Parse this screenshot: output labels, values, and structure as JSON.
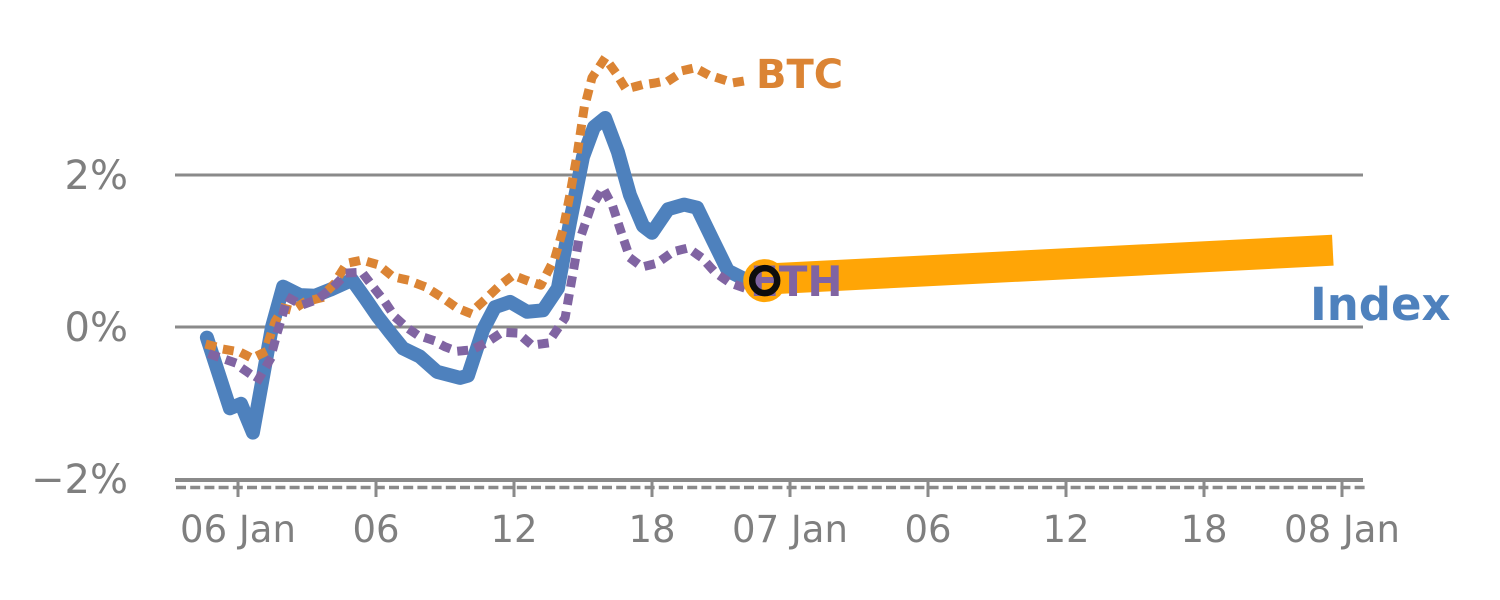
{
  "chart_data": {
    "type": "line",
    "title": "",
    "background": "#FFFFFF",
    "axis_color": "#8A8A8A",
    "label_color": "#7F7F7F",
    "grid": "horizontal-only",
    "x_axis": {
      "unit": "time (hours from 06 Jan 00:00)",
      "tick_labels": [
        "06 Jan",
        "06",
        "12",
        "18",
        "07 Jan",
        "06",
        "12",
        "18",
        "08 Jan"
      ],
      "tick_hours": [
        0,
        6,
        12,
        18,
        24,
        30,
        36,
        42,
        48
      ],
      "range_hours": [
        -2.7,
        48.9
      ]
    },
    "y_axis": {
      "unit": "percent change",
      "tick_labels": [
        "2%",
        "0%",
        "−2%"
      ],
      "tick_values": [
        2,
        0,
        -2
      ],
      "range_pct": [
        -2.0,
        3.9
      ]
    },
    "series": [
      {
        "name": "Index",
        "label": "Index",
        "style": "solid",
        "color": "#4E81BD",
        "points": [
          [
            -1.35,
            -0.14
          ],
          [
            -0.35,
            -1.07
          ],
          [
            0.13,
            -1.01
          ],
          [
            0.65,
            -1.39
          ],
          [
            1.48,
            0.0
          ],
          [
            1.96,
            0.53
          ],
          [
            2.7,
            0.42
          ],
          [
            3.35,
            0.41
          ],
          [
            4.0,
            0.49
          ],
          [
            4.96,
            0.62
          ],
          [
            5.52,
            0.38
          ],
          [
            6.09,
            0.13
          ],
          [
            6.61,
            -0.07
          ],
          [
            7.17,
            -0.28
          ],
          [
            7.91,
            -0.39
          ],
          [
            8.65,
            -0.59
          ],
          [
            9.65,
            -0.67
          ],
          [
            10.0,
            -0.64
          ],
          [
            10.65,
            -0.04
          ],
          [
            11.17,
            0.26
          ],
          [
            11.83,
            0.33
          ],
          [
            12.57,
            0.2
          ],
          [
            13.26,
            0.22
          ],
          [
            13.91,
            0.51
          ],
          [
            14.43,
            1.37
          ],
          [
            15.0,
            2.24
          ],
          [
            15.48,
            2.63
          ],
          [
            15.96,
            2.75
          ],
          [
            16.52,
            2.3
          ],
          [
            17.04,
            1.74
          ],
          [
            17.61,
            1.33
          ],
          [
            18.0,
            1.24
          ],
          [
            18.7,
            1.55
          ],
          [
            19.39,
            1.61
          ],
          [
            19.96,
            1.57
          ],
          [
            20.65,
            1.14
          ],
          [
            21.3,
            0.74
          ],
          [
            22.09,
            0.62
          ],
          [
            22.83,
            0.61
          ]
        ]
      },
      {
        "name": "BTC",
        "label": "BTC",
        "style": "dotted",
        "color": "#DB8434",
        "points": [
          [
            -1.22,
            -0.24
          ],
          [
            -0.48,
            -0.3
          ],
          [
            0.09,
            -0.33
          ],
          [
            0.61,
            -0.41
          ],
          [
            1.17,
            -0.33
          ],
          [
            1.61,
            0.07
          ],
          [
            1.96,
            0.25
          ],
          [
            2.35,
            0.22
          ],
          [
            2.91,
            0.33
          ],
          [
            3.57,
            0.38
          ],
          [
            4.13,
            0.55
          ],
          [
            4.74,
            0.84
          ],
          [
            5.39,
            0.88
          ],
          [
            6.09,
            0.82
          ],
          [
            6.74,
            0.66
          ],
          [
            7.35,
            0.62
          ],
          [
            8.13,
            0.53
          ],
          [
            8.87,
            0.39
          ],
          [
            9.52,
            0.25
          ],
          [
            10.09,
            0.18
          ],
          [
            10.74,
            0.36
          ],
          [
            11.39,
            0.55
          ],
          [
            11.96,
            0.68
          ],
          [
            12.57,
            0.61
          ],
          [
            13.17,
            0.55
          ],
          [
            13.78,
            0.91
          ],
          [
            14.13,
            1.28
          ],
          [
            14.43,
            1.74
          ],
          [
            14.74,
            2.26
          ],
          [
            15.04,
            2.86
          ],
          [
            15.39,
            3.28
          ],
          [
            15.96,
            3.54
          ],
          [
            16.39,
            3.36
          ],
          [
            16.87,
            3.13
          ],
          [
            17.48,
            3.18
          ],
          [
            18.13,
            3.21
          ],
          [
            18.78,
            3.25
          ],
          [
            19.43,
            3.38
          ],
          [
            19.87,
            3.41
          ],
          [
            20.43,
            3.32
          ],
          [
            21.04,
            3.26
          ],
          [
            21.65,
            3.22
          ],
          [
            22.26,
            3.25
          ]
        ]
      },
      {
        "name": "ETH",
        "label": "ETH",
        "style": "dotted",
        "color": "#8064A2",
        "points": [
          [
            -1.09,
            -0.37
          ],
          [
            -0.22,
            -0.46
          ],
          [
            0.39,
            -0.59
          ],
          [
            0.87,
            -0.7
          ],
          [
            1.39,
            -0.43
          ],
          [
            1.74,
            -0.04
          ],
          [
            2.17,
            0.39
          ],
          [
            2.78,
            0.29
          ],
          [
            3.43,
            0.36
          ],
          [
            4.09,
            0.51
          ],
          [
            4.74,
            0.71
          ],
          [
            5.39,
            0.72
          ],
          [
            5.87,
            0.53
          ],
          [
            6.39,
            0.33
          ],
          [
            6.83,
            0.13
          ],
          [
            7.35,
            -0.01
          ],
          [
            7.83,
            -0.11
          ],
          [
            8.43,
            -0.17
          ],
          [
            9.0,
            -0.26
          ],
          [
            9.52,
            -0.32
          ],
          [
            10.17,
            -0.3
          ],
          [
            10.83,
            -0.2
          ],
          [
            11.48,
            -0.07
          ],
          [
            12.17,
            -0.08
          ],
          [
            12.78,
            -0.24
          ],
          [
            13.48,
            -0.21
          ],
          [
            14.22,
            0.12
          ],
          [
            14.78,
            1.08
          ],
          [
            15.3,
            1.54
          ],
          [
            15.87,
            1.83
          ],
          [
            16.3,
            1.58
          ],
          [
            16.7,
            1.21
          ],
          [
            17.04,
            0.91
          ],
          [
            17.57,
            0.79
          ],
          [
            18.22,
            0.84
          ],
          [
            18.91,
            0.99
          ],
          [
            19.57,
            1.04
          ],
          [
            20.17,
            0.91
          ],
          [
            20.74,
            0.72
          ],
          [
            21.39,
            0.58
          ],
          [
            22.04,
            0.51
          ]
        ]
      },
      {
        "name": "Index projection",
        "label": "",
        "style": "thick",
        "color": "#FFA506",
        "points": [
          [
            22.9,
            0.63
          ],
          [
            47.6,
            1.01
          ]
        ]
      }
    ],
    "marker": {
      "h": 22.9,
      "pct": 0.61,
      "type": "open-circle",
      "ring_color": "#0D0D0D",
      "halo_color": "#FFA506"
    }
  }
}
